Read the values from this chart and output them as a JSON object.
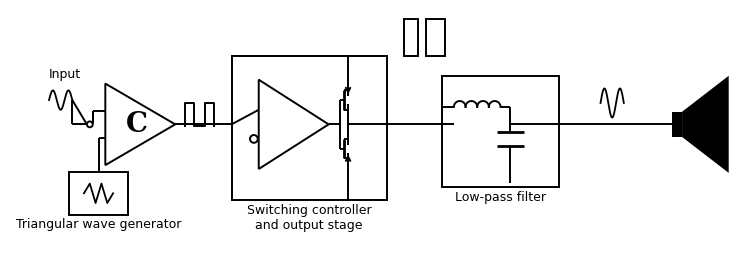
{
  "bg_color": "#ffffff",
  "line_color": "#000000",
  "labels": {
    "input": "Input",
    "triangular": "Triangular wave generator",
    "switching": "Switching controller\nand output stage",
    "lowpass": "Low-pass filter"
  },
  "font_size": 9,
  "figsize": [
    7.33,
    2.72
  ],
  "dpi": 100
}
